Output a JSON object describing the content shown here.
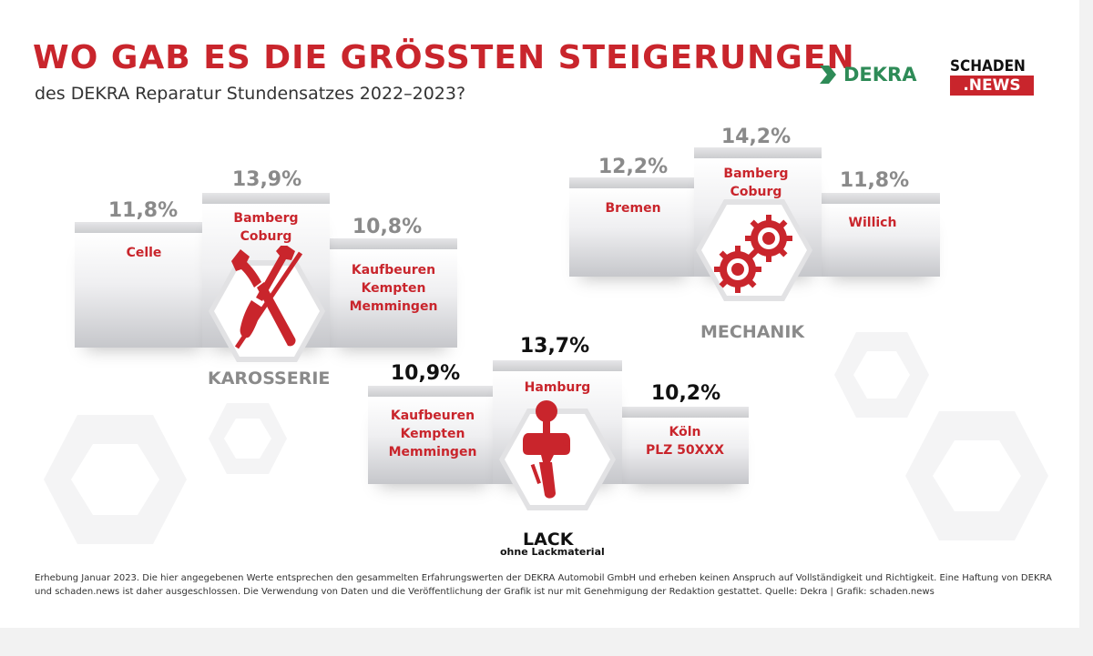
{
  "title": "WO GAB ES DIE GRÖSSTEN STEIGERUNGEN",
  "subtitle": "des DEKRA Reparatur Stundensatzes 2022–2023?",
  "logos": {
    "dekra": "DEKRA",
    "schaden_top": "SCHADEN",
    "schaden_bottom": ".NEWS"
  },
  "colors": {
    "accent_red": "#c9252c",
    "grey_text": "#8a8a8a",
    "dekra_green": "#2e8b57"
  },
  "karosserie": {
    "label": "KAROSSERIE",
    "icon": "wrench-screwdriver-icon",
    "left": {
      "pct": "11,8%",
      "city": "Celle"
    },
    "center": {
      "pct": "13,9%",
      "city_1": "Bamberg",
      "city_2": "Coburg"
    },
    "right": {
      "pct": "10,8%",
      "city_1": "Kaufbeuren",
      "city_2": "Kempten",
      "city_3": "Memmingen"
    }
  },
  "mechanik": {
    "label": "MECHANIK",
    "icon": "gears-icon",
    "left": {
      "pct": "12,2%",
      "city": "Bremen"
    },
    "center": {
      "pct": "14,2%",
      "city_1": "Bamberg",
      "city_2": "Coburg"
    },
    "right": {
      "pct": "11,8%",
      "city": "Willich"
    }
  },
  "lack": {
    "label": "LACK",
    "sublabel": "ohne Lackmaterial",
    "icon": "spray-gun-icon",
    "left": {
      "pct": "10,9%",
      "city_1": "Kaufbeuren",
      "city_2": "Kempten",
      "city_3": "Memmingen"
    },
    "center": {
      "pct": "13,7%",
      "city": "Hamburg"
    },
    "right": {
      "pct": "10,2%",
      "city_1": "Köln",
      "city_2": "PLZ 50XXX"
    }
  },
  "footer": "Erhebung Januar 2023. Die hier angegebenen Werte entsprechen den gesammelten Erfahrungswerten der DEKRA Automobil GmbH und erheben keinen Anspruch auf Vollständigkeit und Richtigkeit. Eine Haftung von DEKRA und schaden.news ist daher ausgeschlossen. Die Verwendung von Daten und die Veröffentlichung der Grafik ist nur mit Genehmigung der Redaktion gestattet. Quelle: Dekra | Grafik: schaden.news"
}
